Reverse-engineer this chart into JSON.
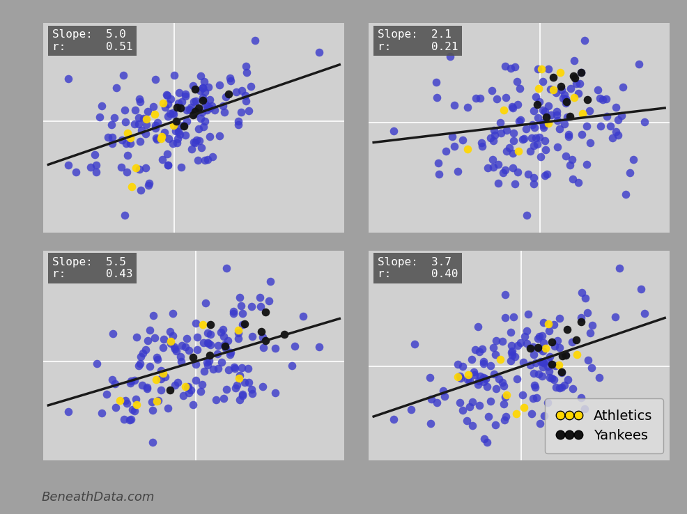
{
  "subplots": [
    {
      "slope": 5.0,
      "r": 0.51
    },
    {
      "slope": 2.1,
      "r": 0.21
    },
    {
      "slope": 5.5,
      "r": 0.43
    },
    {
      "slope": 3.7,
      "r": 0.4
    }
  ],
  "fig_bg_color": "#a0a0a0",
  "ax_bg_color": "#d0d0d0",
  "dot_color_main": "#3a3acc",
  "dot_color_athletics": "#FFD700",
  "dot_color_yankees": "#111111",
  "line_color": "#1a1a1a",
  "annotation_bg": "#555555",
  "annotation_fg": "#ffffff",
  "watermark": "BeneathData.com",
  "crosshair_color": "#ffffff",
  "dot_alpha": 0.8,
  "dot_size": 70,
  "n_blue": 140,
  "n_gold": 10,
  "n_black": 10
}
